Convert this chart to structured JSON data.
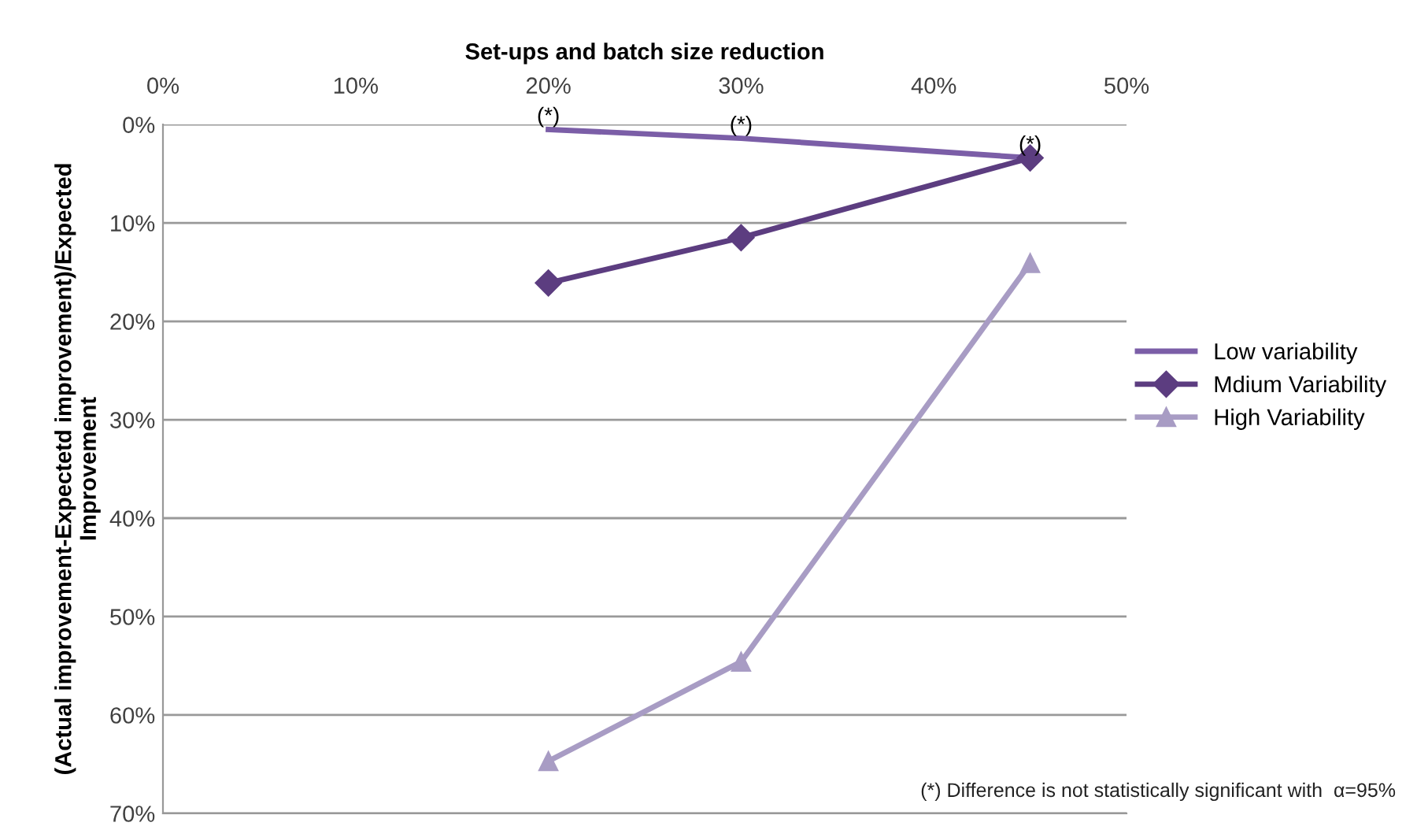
{
  "chart_data": {
    "type": "line",
    "xlabel": "Set-ups and batch size reduction",
    "ylabel": "(Actual improvement-Expectetd improvement)/Expected Improvement",
    "x": [
      20,
      30,
      45
    ],
    "series": [
      {
        "name": "Low variability",
        "color": "#7b5ea7",
        "values": [
          0.5,
          1.4,
          3.4
        ],
        "marker": "none"
      },
      {
        "name": "Mdium Variability",
        "color": "#5c3d80",
        "values": [
          16.1,
          11.5,
          3.4
        ],
        "marker": "diamond"
      },
      {
        "name": "High Variability",
        "color": "#a89cc4",
        "values": [
          64.7,
          54.6,
          14.1
        ],
        "marker": "triangle"
      }
    ],
    "xlim": [
      0,
      50
    ],
    "xticks": [
      {
        "value": 0,
        "label": "0%"
      },
      {
        "value": 10,
        "label": "10%"
      },
      {
        "value": 20,
        "label": "20%"
      },
      {
        "value": 30,
        "label": "30%"
      },
      {
        "value": 40,
        "label": "40%"
      },
      {
        "value": 50,
        "label": "50%"
      }
    ],
    "ylim": [
      70,
      0
    ],
    "yticks": [
      {
        "value": 0,
        "label": "0%"
      },
      {
        "value": 10,
        "label": "10%"
      },
      {
        "value": 20,
        "label": "20%"
      },
      {
        "value": 30,
        "label": "30%"
      },
      {
        "value": 40,
        "label": "40%"
      },
      {
        "value": 50,
        "label": "50%"
      },
      {
        "value": 60,
        "label": "60%"
      },
      {
        "value": 70,
        "label": "70%"
      }
    ],
    "grid": "y",
    "legend": "right",
    "annotations": [
      {
        "text": "(*)",
        "x": 20,
        "y": 0.5
      },
      {
        "text": "(*)",
        "x": 30,
        "y": 1.4
      },
      {
        "text": "(*)",
        "x": 45,
        "y": 3.4
      },
      "(*) Difference is not statistically significant with  α=95%"
    ]
  }
}
